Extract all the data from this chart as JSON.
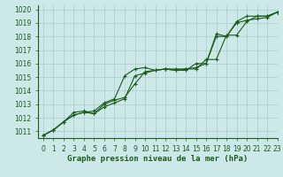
{
  "title": "Graphe pression niveau de la mer (hPa)",
  "background_color": "#cce8e8",
  "grid_color": "#aacccc",
  "line_color": "#1a5c1a",
  "xlim": [
    -0.5,
    23
  ],
  "ylim": [
    1010.5,
    1020.3
  ],
  "yticks": [
    1011,
    1012,
    1013,
    1014,
    1015,
    1016,
    1017,
    1018,
    1019,
    1020
  ],
  "xticks": [
    0,
    1,
    2,
    3,
    4,
    5,
    6,
    7,
    8,
    9,
    10,
    11,
    12,
    13,
    14,
    15,
    16,
    17,
    18,
    19,
    20,
    21,
    22,
    23
  ],
  "series1_x": [
    0,
    1,
    2,
    3,
    4,
    5,
    6,
    7,
    8,
    9,
    10,
    11,
    12,
    13,
    14,
    15,
    16,
    17,
    18,
    19,
    20,
    21,
    22,
    23
  ],
  "series1_y": [
    1010.7,
    1011.1,
    1011.7,
    1012.2,
    1012.4,
    1012.5,
    1013.1,
    1013.4,
    1015.1,
    1015.6,
    1015.7,
    1015.5,
    1015.6,
    1015.6,
    1015.6,
    1015.6,
    1016.3,
    1016.3,
    1018.1,
    1018.1,
    1019.1,
    1019.5,
    1019.5,
    1019.8
  ],
  "series2_x": [
    0,
    1,
    2,
    3,
    4,
    5,
    6,
    7,
    8,
    9,
    10,
    11,
    12,
    13,
    14,
    15,
    16,
    17,
    18,
    19,
    20,
    21,
    22,
    23
  ],
  "series2_y": [
    1010.7,
    1011.1,
    1011.7,
    1012.4,
    1012.5,
    1012.3,
    1013.0,
    1013.3,
    1013.5,
    1014.5,
    1015.4,
    1015.5,
    1015.6,
    1015.5,
    1015.6,
    1015.7,
    1016.0,
    1018.2,
    1018.0,
    1019.1,
    1019.5,
    1019.5,
    1019.5,
    1019.8
  ],
  "series3_x": [
    0,
    1,
    2,
    3,
    4,
    5,
    6,
    7,
    8,
    9,
    10,
    11,
    12,
    13,
    14,
    15,
    16,
    17,
    18,
    19,
    20,
    21,
    22,
    23
  ],
  "series3_y": [
    1010.7,
    1011.1,
    1011.7,
    1012.2,
    1012.4,
    1012.3,
    1012.8,
    1013.1,
    1013.4,
    1015.1,
    1015.3,
    1015.5,
    1015.6,
    1015.5,
    1015.5,
    1016.0,
    1016.0,
    1018.0,
    1018.0,
    1019.0,
    1019.2,
    1019.3,
    1019.4,
    1019.8
  ],
  "tick_fontsize": 5.5,
  "title_fontsize": 6.5
}
